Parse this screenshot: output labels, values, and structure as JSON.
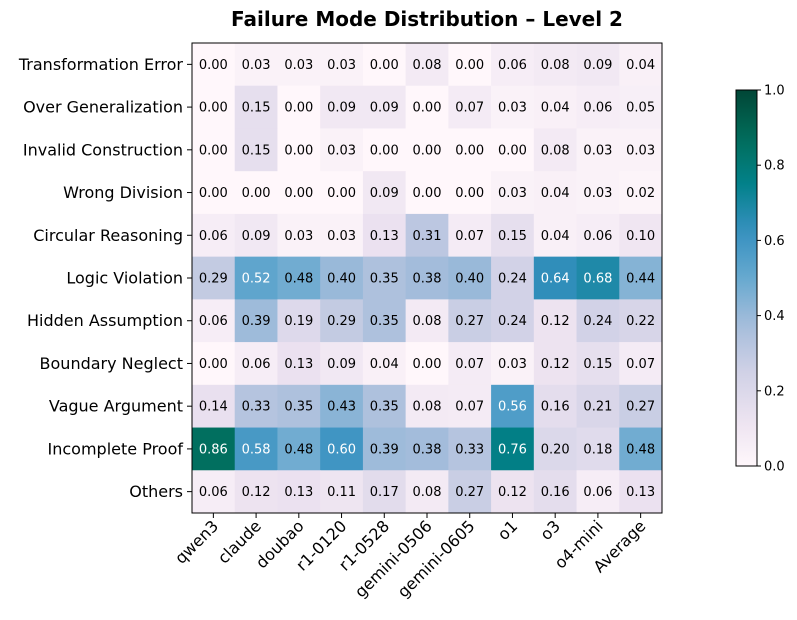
{
  "chart_data": {
    "type": "heatmap",
    "title": "Failure Mode Distribution – Level 2",
    "xlabel": "",
    "ylabel": "",
    "rows": [
      "Transformation Error",
      "Over Generalization",
      "Invalid Construction",
      "Wrong Division",
      "Circular Reasoning",
      "Logic Violation",
      "Hidden Assumption",
      "Boundary Neglect",
      "Vague Argument",
      "Incomplete Proof",
      "Others"
    ],
    "columns": [
      "qwen3",
      "claude",
      "doubao",
      "r1-0120",
      "r1-0528",
      "gemini-0506",
      "gemini-0605",
      "o1",
      "o3",
      "o4-mini",
      "Average"
    ],
    "values": [
      [
        0.0,
        0.03,
        0.03,
        0.03,
        0.0,
        0.08,
        0.0,
        0.06,
        0.08,
        0.09,
        0.04
      ],
      [
        0.0,
        0.15,
        0.0,
        0.09,
        0.09,
        0.0,
        0.07,
        0.03,
        0.04,
        0.06,
        0.05
      ],
      [
        0.0,
        0.15,
        0.0,
        0.03,
        0.0,
        0.0,
        0.0,
        0.0,
        0.08,
        0.03,
        0.03
      ],
      [
        0.0,
        0.0,
        0.0,
        0.0,
        0.09,
        0.0,
        0.0,
        0.03,
        0.04,
        0.03,
        0.02
      ],
      [
        0.06,
        0.09,
        0.03,
        0.03,
        0.13,
        0.31,
        0.07,
        0.15,
        0.04,
        0.06,
        0.1
      ],
      [
        0.29,
        0.52,
        0.48,
        0.4,
        0.35,
        0.38,
        0.4,
        0.24,
        0.64,
        0.68,
        0.44
      ],
      [
        0.06,
        0.39,
        0.19,
        0.29,
        0.35,
        0.08,
        0.27,
        0.24,
        0.12,
        0.24,
        0.22
      ],
      [
        0.0,
        0.06,
        0.13,
        0.09,
        0.04,
        0.0,
        0.07,
        0.03,
        0.12,
        0.15,
        0.07
      ],
      [
        0.14,
        0.33,
        0.35,
        0.43,
        0.35,
        0.08,
        0.07,
        0.56,
        0.16,
        0.21,
        0.27
      ],
      [
        0.86,
        0.58,
        0.48,
        0.6,
        0.39,
        0.38,
        0.33,
        0.76,
        0.2,
        0.18,
        0.48
      ],
      [
        0.06,
        0.12,
        0.13,
        0.11,
        0.17,
        0.08,
        0.27,
        0.12,
        0.16,
        0.06,
        0.13
      ]
    ],
    "value_format": "2 decimals",
    "colormap": "PuBuGn",
    "colorbar": {
      "range": [
        0.0,
        1.0
      ],
      "ticks": [
        "0.0",
        "0.2",
        "0.4",
        "0.6",
        "0.8",
        "1.0"
      ]
    },
    "text_colors": {
      "dark_cell": "#ffffff",
      "light_cell": "#000000"
    }
  }
}
